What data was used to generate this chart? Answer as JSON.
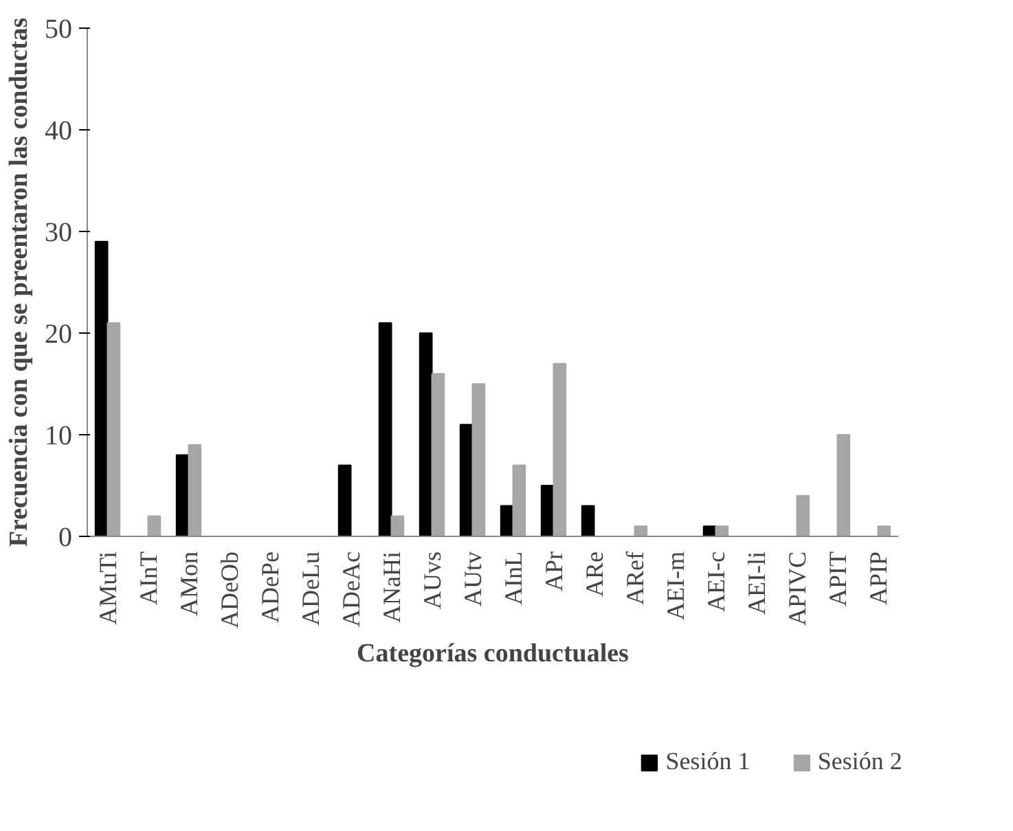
{
  "chart_data": {
    "type": "bar",
    "xlabel": "Categorías conductuales",
    "ylabel": "Frecuencia con que se preentaron las conductas",
    "categories": [
      "AMuTi",
      "AInT",
      "AMon",
      "ADeOb",
      "ADePe",
      "ADeLu",
      "ADeAc",
      "ANaHi",
      "AUvs",
      "AUtv",
      "AInL",
      "APr",
      "ARe",
      "ARef",
      "AEI-m",
      "AEI-c",
      "AEI-li",
      "APIVC",
      "APIT",
      "APIP"
    ],
    "series": [
      {
        "name": "Sesión 1",
        "color": "#000000",
        "values": [
          29,
          0,
          8,
          0,
          0,
          0,
          7,
          21,
          20,
          11,
          3,
          5,
          3,
          0,
          0,
          1,
          0,
          0,
          0,
          0
        ]
      },
      {
        "name": "Sesión 2",
        "color": "#a6a6a6",
        "values": [
          21,
          2,
          9,
          0,
          0,
          0,
          0,
          2,
          16,
          15,
          7,
          17,
          0,
          1,
          0,
          1,
          0,
          4,
          10,
          1
        ]
      }
    ],
    "ylim": [
      0,
      50
    ],
    "yticks": [
      0,
      10,
      20,
      30,
      40,
      50
    ],
    "grid": false,
    "legend": "bottom"
  }
}
